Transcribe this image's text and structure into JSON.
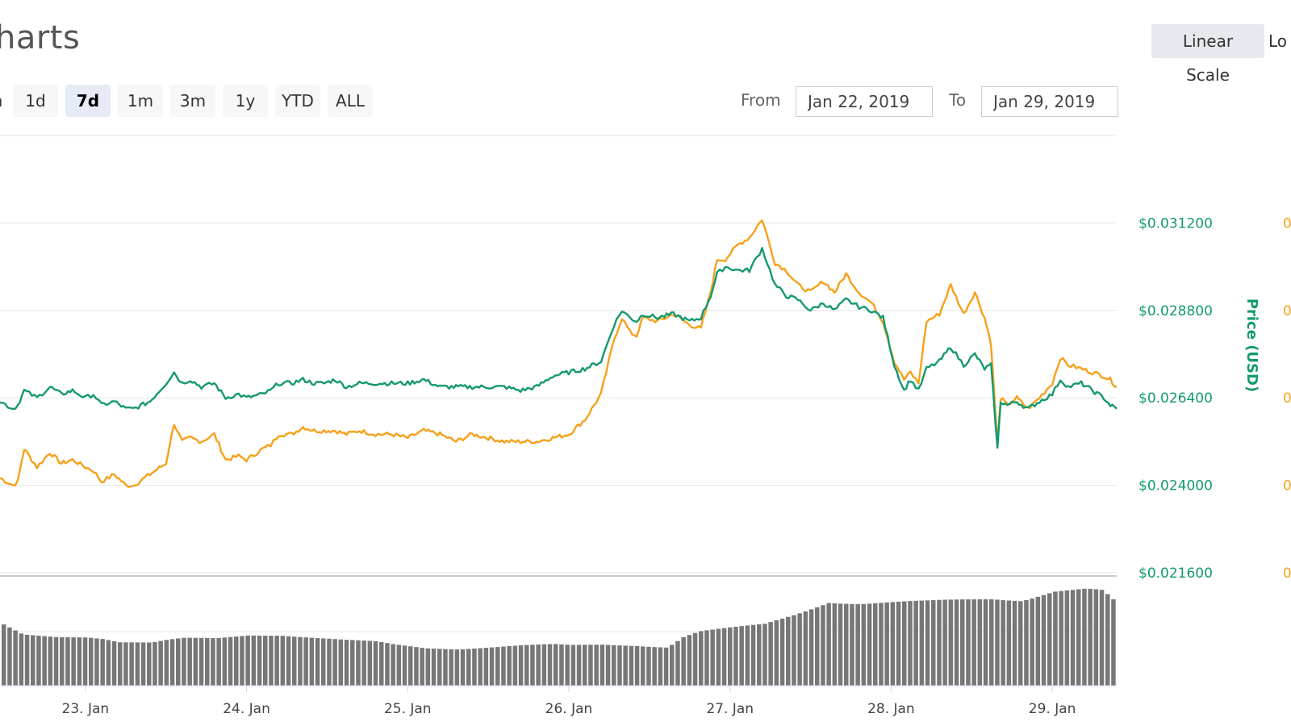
{
  "header": {
    "title": "harts",
    "scale_linear": "Linear Scale",
    "scale_log": "Lo"
  },
  "range": {
    "partial_label": "n",
    "buttons": [
      "1d",
      "7d",
      "1m",
      "3m",
      "1y",
      "YTD",
      "ALL"
    ],
    "active": "7d"
  },
  "date_range": {
    "from_label": "From",
    "from_value": "Jan 22, 2019",
    "to_label": "To",
    "to_value": "Jan 29, 2019"
  },
  "colors": {
    "usd": "#13996f",
    "btc": "#f7a01a",
    "volume": "#777777",
    "grid": "#e6e6e6"
  },
  "chart_data": {
    "type": "line",
    "x_tick_labels": [
      "23. Jan",
      "24. Jan",
      "25. Jan",
      "26. Jan",
      "27. Jan",
      "28. Jan",
      "29. Jan"
    ],
    "y_axis_right": {
      "label": "Price (USD)",
      "ticks": [
        "$0.031200",
        "$0.028800",
        "$0.026400",
        "$0.024000",
        "$0.021600"
      ],
      "ylim": [
        0.0216,
        0.0336
      ]
    },
    "y_axis_far_right": {
      "ticks": [
        "0",
        "0",
        "0",
        "0",
        "0"
      ]
    },
    "xlim": [
      22.47,
      29.4
    ],
    "series": [
      {
        "key": "usd",
        "x": [
          22.47,
          22.55,
          22.58,
          22.62,
          22.7,
          22.78,
          22.85,
          22.92,
          23.0,
          23.05,
          23.1,
          23.18,
          23.25,
          23.3,
          23.4,
          23.5,
          23.55,
          23.6,
          23.65,
          23.72,
          23.8,
          23.87,
          23.95,
          24.0,
          24.1,
          24.15,
          24.2,
          24.28,
          24.35,
          24.42,
          24.48,
          24.55,
          24.62,
          24.7,
          24.8,
          24.9,
          25.0,
          25.1,
          25.2,
          25.3,
          25.4,
          25.5,
          25.6,
          25.7,
          25.8,
          25.9,
          26.0,
          26.1,
          26.2,
          26.28,
          26.33,
          26.38,
          26.42,
          26.46,
          26.55,
          26.65,
          26.75,
          26.82,
          26.88,
          26.92,
          26.97,
          27.05,
          27.12,
          27.2,
          27.28,
          27.35,
          27.42,
          27.5,
          27.58,
          27.65,
          27.72,
          27.8,
          27.88,
          27.95,
          28.02,
          28.08,
          28.12,
          28.17,
          28.22,
          28.3,
          28.37,
          28.45,
          28.52,
          28.58,
          28.62,
          28.66,
          28.68,
          28.72,
          28.78,
          28.85,
          28.92,
          29.0,
          29.05,
          29.1,
          29.18,
          29.25,
          29.32,
          29.36,
          29.4
        ],
        "values": [
          0.0263,
          0.0261,
          0.0262,
          0.0266,
          0.0264,
          0.0267,
          0.0265,
          0.0266,
          0.0264,
          0.0265,
          0.0262,
          0.0263,
          0.0261,
          0.0261,
          0.0263,
          0.0268,
          0.0271,
          0.0268,
          0.0269,
          0.0267,
          0.0268,
          0.0264,
          0.0265,
          0.0264,
          0.0265,
          0.0266,
          0.0268,
          0.0268,
          0.0269,
          0.0268,
          0.0268,
          0.0269,
          0.0267,
          0.0268,
          0.0268,
          0.0268,
          0.0268,
          0.0269,
          0.0267,
          0.0267,
          0.0267,
          0.0267,
          0.0267,
          0.0266,
          0.0267,
          0.027,
          0.0271,
          0.0272,
          0.0274,
          0.0284,
          0.0288,
          0.0286,
          0.0285,
          0.0287,
          0.0286,
          0.0287,
          0.0285,
          0.0286,
          0.0292,
          0.0298,
          0.03,
          0.0299,
          0.0299,
          0.0305,
          0.0295,
          0.0292,
          0.0291,
          0.0288,
          0.029,
          0.0288,
          0.0291,
          0.0289,
          0.0288,
          0.0286,
          0.0273,
          0.0266,
          0.0269,
          0.0266,
          0.0272,
          0.0274,
          0.0278,
          0.0273,
          0.0276,
          0.0272,
          0.0273,
          0.025,
          0.0263,
          0.0262,
          0.0263,
          0.0261,
          0.0263,
          0.0265,
          0.0269,
          0.0267,
          0.0268,
          0.0266,
          0.0264,
          0.0262,
          0.0261
        ]
      },
      {
        "key": "btc",
        "x": [
          22.47,
          22.55,
          22.58,
          22.62,
          22.7,
          22.78,
          22.85,
          22.92,
          23.0,
          23.05,
          23.1,
          23.18,
          23.25,
          23.3,
          23.4,
          23.5,
          23.55,
          23.6,
          23.65,
          23.72,
          23.8,
          23.87,
          23.95,
          24.0,
          24.1,
          24.15,
          24.2,
          24.28,
          24.35,
          24.42,
          24.48,
          24.55,
          24.62,
          24.7,
          24.8,
          24.9,
          25.0,
          25.1,
          25.2,
          25.3,
          25.4,
          25.5,
          25.6,
          25.7,
          25.8,
          25.9,
          26.0,
          26.1,
          26.2,
          26.28,
          26.33,
          26.38,
          26.42,
          26.46,
          26.55,
          26.65,
          26.75,
          26.82,
          26.88,
          26.92,
          26.97,
          27.05,
          27.12,
          27.2,
          27.28,
          27.35,
          27.42,
          27.5,
          27.58,
          27.65,
          27.72,
          27.8,
          27.88,
          27.95,
          28.02,
          28.08,
          28.12,
          28.17,
          28.22,
          28.3,
          28.37,
          28.45,
          28.52,
          28.58,
          28.62,
          28.66,
          28.68,
          28.72,
          28.78,
          28.85,
          28.92,
          29.0,
          29.05,
          29.1,
          29.18,
          29.25,
          29.32,
          29.36,
          29.4
        ],
        "values": [
          0.0242,
          0.024,
          0.0241,
          0.025,
          0.0245,
          0.0249,
          0.0246,
          0.0247,
          0.0245,
          0.0244,
          0.0241,
          0.0243,
          0.024,
          0.024,
          0.0243,
          0.0246,
          0.0257,
          0.0252,
          0.0253,
          0.0252,
          0.0254,
          0.0247,
          0.0248,
          0.0247,
          0.025,
          0.0251,
          0.0254,
          0.0254,
          0.0256,
          0.0255,
          0.0255,
          0.0255,
          0.0254,
          0.0255,
          0.0254,
          0.0254,
          0.0253,
          0.0255,
          0.0254,
          0.0252,
          0.0254,
          0.0253,
          0.0252,
          0.0252,
          0.0252,
          0.0253,
          0.0254,
          0.0258,
          0.0265,
          0.028,
          0.0286,
          0.0282,
          0.0281,
          0.0286,
          0.0285,
          0.0287,
          0.0284,
          0.0283,
          0.0293,
          0.0302,
          0.0302,
          0.0306,
          0.0308,
          0.0313,
          0.0301,
          0.0299,
          0.0295,
          0.0293,
          0.0296,
          0.0293,
          0.0298,
          0.0293,
          0.029,
          0.0285,
          0.0274,
          0.0269,
          0.0271,
          0.0268,
          0.0285,
          0.0287,
          0.0295,
          0.0287,
          0.0293,
          0.0286,
          0.0279,
          0.0251,
          0.0264,
          0.0262,
          0.0264,
          0.0261,
          0.0264,
          0.0268,
          0.0275,
          0.0273,
          0.0272,
          0.0271,
          0.027,
          0.0269,
          0.0267
        ]
      }
    ],
    "volume": {
      "x": [
        22.47,
        22.6,
        22.8,
        23.0,
        23.1,
        23.2,
        23.4,
        23.5,
        23.6,
        23.8,
        23.9,
        24.0,
        24.2,
        24.4,
        24.6,
        24.8,
        24.9,
        25.0,
        25.1,
        25.3,
        25.5,
        25.7,
        25.9,
        26.0,
        26.2,
        26.4,
        26.5,
        26.6,
        26.7,
        26.8,
        27.0,
        27.2,
        27.4,
        27.6,
        27.8,
        28.0,
        28.2,
        28.4,
        28.6,
        28.8,
        29.0,
        29.2,
        29.3,
        29.4
      ],
      "values": [
        0.7,
        0.58,
        0.56,
        0.56,
        0.54,
        0.5,
        0.49,
        0.52,
        0.54,
        0.54,
        0.56,
        0.58,
        0.58,
        0.55,
        0.52,
        0.5,
        0.47,
        0.45,
        0.43,
        0.42,
        0.44,
        0.46,
        0.47,
        0.46,
        0.47,
        0.46,
        0.45,
        0.44,
        0.56,
        0.62,
        0.66,
        0.7,
        0.82,
        0.96,
        0.94,
        0.95,
        0.96,
        0.98,
        1.0,
        0.98,
        1.08,
        1.1,
        1.08,
        0.92
      ]
    }
  }
}
